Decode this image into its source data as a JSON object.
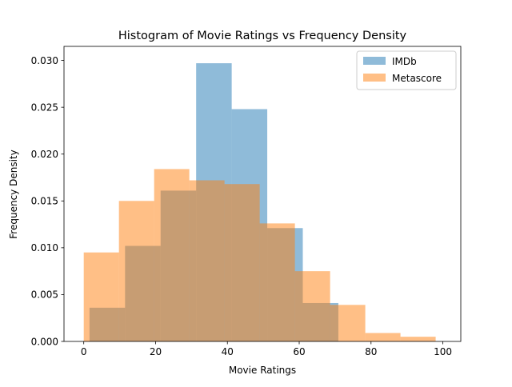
{
  "chart_data": {
    "type": "histogram",
    "title": "Histogram of Movie Ratings vs Frequency Density",
    "xlabel": "Movie Ratings",
    "ylabel": "Frequency Density",
    "xlim": [
      -5.5,
      105
    ],
    "ylim": [
      0,
      0.0315
    ],
    "xticks": [
      0,
      20,
      40,
      60,
      80,
      100
    ],
    "yticks": [
      0,
      0.005,
      0.01,
      0.015,
      0.02,
      0.025,
      0.03
    ],
    "ytick_labels": [
      "0.000",
      "0.005",
      "0.010",
      "0.015",
      "0.020",
      "0.025",
      "0.030"
    ],
    "grid": false,
    "legend_position": "upper right",
    "series": [
      {
        "name": "IMDb",
        "color": "#1f77b4",
        "alpha": 0.5,
        "bin_edges": [
          1.6,
          11.5,
          21.4,
          31.3,
          41.2,
          51.1,
          61.0,
          70.9,
          80.8
        ],
        "density": [
          0.0036,
          0.0102,
          0.0161,
          0.0297,
          0.0248,
          0.0121,
          0.0041,
          0.0
        ]
      },
      {
        "name": "Metascore",
        "color": "#ff7f0e",
        "alpha": 0.5,
        "bin_edges": [
          0,
          9.8,
          19.6,
          29.4,
          39.2,
          49.0,
          58.8,
          68.6,
          78.4,
          88.2,
          98.0
        ],
        "density": [
          0.0095,
          0.015,
          0.0184,
          0.0172,
          0.0168,
          0.0126,
          0.0075,
          0.0039,
          0.0009,
          0.0005
        ]
      }
    ]
  }
}
